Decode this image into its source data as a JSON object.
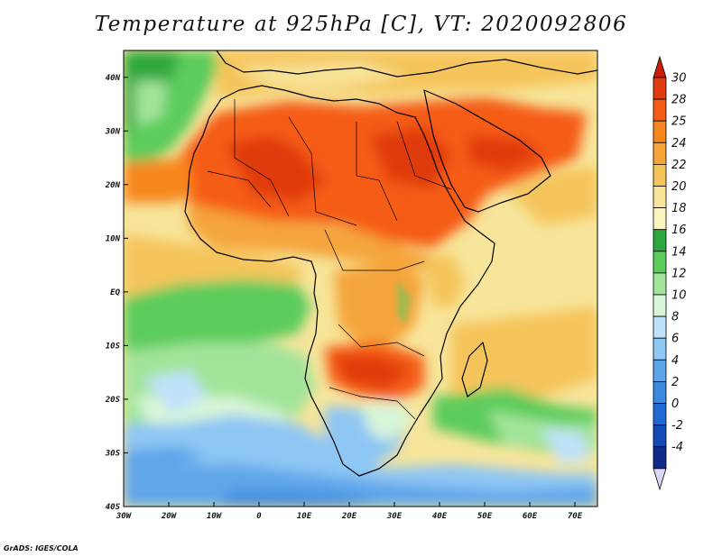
{
  "title": "Temperature at 925hPa [C], VT: 2020092806",
  "credit": "GrADS: IGES/COLA",
  "map": {
    "variable": "Temperature",
    "level": "925hPa",
    "units": "C",
    "valid_time": "2020092806",
    "lon_range": [
      -30,
      75
    ],
    "lat_range": [
      -40,
      45
    ],
    "lat_ticks": [
      {
        "value": 40,
        "label": "40N"
      },
      {
        "value": 30,
        "label": "30N"
      },
      {
        "value": 20,
        "label": "20N"
      },
      {
        "value": 10,
        "label": "10N"
      },
      {
        "value": 0,
        "label": "EQ"
      },
      {
        "value": -10,
        "label": "10S"
      },
      {
        "value": -20,
        "label": "20S"
      },
      {
        "value": -30,
        "label": "30S"
      },
      {
        "value": -40,
        "label": "40S"
      }
    ],
    "lon_ticks": [
      {
        "value": -30,
        "label": "30W"
      },
      {
        "value": -20,
        "label": "20W"
      },
      {
        "value": -10,
        "label": "10W"
      },
      {
        "value": 0,
        "label": "0"
      },
      {
        "value": 10,
        "label": "10E"
      },
      {
        "value": 20,
        "label": "20E"
      },
      {
        "value": 30,
        "label": "30E"
      },
      {
        "value": 40,
        "label": "40E"
      },
      {
        "value": 50,
        "label": "50E"
      },
      {
        "value": 60,
        "label": "60E"
      },
      {
        "value": 70,
        "label": "70E"
      }
    ]
  },
  "colorbar": {
    "levels": [
      "30",
      "28",
      "25",
      "24",
      "22",
      "20",
      "18",
      "16",
      "14",
      "12",
      "10",
      "8",
      "6",
      "4",
      "2",
      "0",
      "-2",
      "-4"
    ],
    "colors": [
      "#e03a10",
      "#f55c16",
      "#f7861e",
      "#f5a43a",
      "#f5c55c",
      "#f7e59a",
      "#fbf6be",
      "#2ea83e",
      "#5ccc5c",
      "#a2e49a",
      "#d8f6d8",
      "#bfe2fa",
      "#8ec6f4",
      "#5ea6ea",
      "#3c88de",
      "#1e6ad2",
      "#144ab4",
      "#102a8a"
    ],
    "top_color": "#c81e0a",
    "bottom_color": "#d8d8f6"
  }
}
